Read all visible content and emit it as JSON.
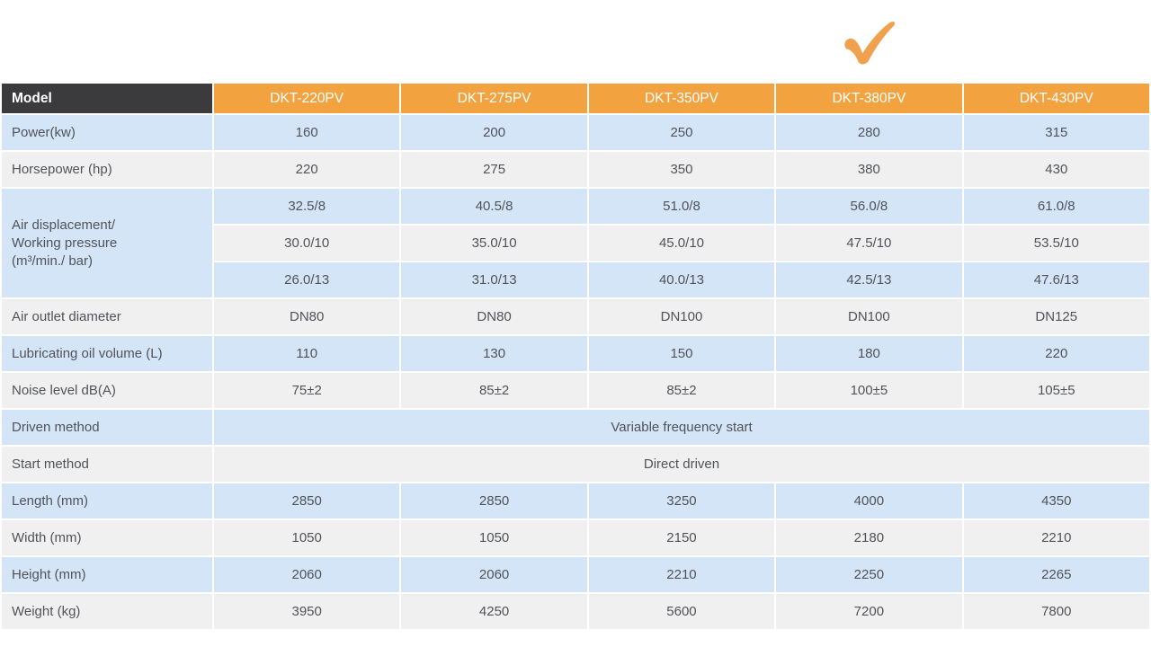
{
  "page": {
    "background": "#ffffff"
  },
  "decorations": {
    "checkmark": {
      "name": "checkmark-icon",
      "color": "#efa14e"
    }
  },
  "colors": {
    "header_dark_bg": "#3b3b3d",
    "header_orange_bg": "#f2a340",
    "row_blue_bg": "#d4e5f8",
    "row_gray_bg": "#f0f0f1",
    "header_text": "#ffffff",
    "cell_text": "#515358"
  },
  "table": {
    "header": {
      "model_label": "Model",
      "columns": [
        "DKT-220PV",
        "DKT-275PV",
        "DKT-350PV",
        "DKT-380PV",
        "DKT-430PV"
      ]
    },
    "rows": [
      {
        "label": "Power(kw)",
        "shade": "blue",
        "cells": [
          "160",
          "200",
          "250",
          "280",
          "315"
        ]
      },
      {
        "label": "Horsepower (hp)",
        "shade": "gray",
        "cells": [
          "220",
          "275",
          "350",
          "380",
          "430"
        ]
      },
      {
        "label": "Air displacement/\nWorking pressure\n(m³/min./ bar)",
        "label_rowspan": 3,
        "label_shade": "blue",
        "shade": "blue",
        "cells": [
          "32.5/8",
          "40.5/8",
          "51.0/8",
          "56.0/8",
          "61.0/8"
        ]
      },
      {
        "shade": "gray",
        "cells": [
          "30.0/10",
          "35.0/10",
          "45.0/10",
          "47.5/10",
          "53.5/10"
        ]
      },
      {
        "shade": "blue",
        "cells": [
          "26.0/13",
          "31.0/13",
          "40.0/13",
          "42.5/13",
          "47.6/13"
        ]
      },
      {
        "label": "Air outlet diameter",
        "shade": "gray",
        "cells": [
          "DN80",
          "DN80",
          "DN100",
          "DN100",
          "DN125"
        ]
      },
      {
        "label": "Lubricating oil volume (L)",
        "shade": "blue",
        "cells": [
          "110",
          "130",
          "150",
          "180",
          "220"
        ]
      },
      {
        "label": "Noise level dB(A)",
        "shade": "gray",
        "cells": [
          "75±2",
          "85±2",
          "85±2",
          "100±5",
          "105±5"
        ]
      },
      {
        "label": "Driven method",
        "shade": "blue",
        "span_value": "Variable frequency start"
      },
      {
        "label": "Start method",
        "shade": "gray",
        "span_value": "Direct driven"
      },
      {
        "label": "Length (mm)",
        "shade": "blue",
        "cells": [
          "2850",
          "2850",
          "3250",
          "4000",
          "4350"
        ]
      },
      {
        "label": "Width (mm)",
        "shade": "gray",
        "cells": [
          "1050",
          "1050",
          "2150",
          "2180",
          "2210"
        ]
      },
      {
        "label": "Height (mm)",
        "shade": "blue",
        "cells": [
          "2060",
          "2060",
          "2210",
          "2250",
          "2265"
        ]
      },
      {
        "label": "Weight (kg)",
        "shade": "gray",
        "cells": [
          "3950",
          "4250",
          "5600",
          "7200",
          "7800"
        ]
      }
    ]
  }
}
